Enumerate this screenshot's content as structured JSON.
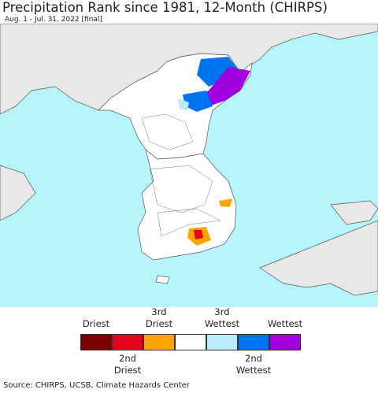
{
  "title": "Precipitation Rank since 1981, 12-Month (CHIRPS)",
  "subtitle": "Aug. 1 - Jul. 31, 2022 [final]",
  "legend": [
    {
      "label": "Driest",
      "color": "#7a0000"
    },
    {
      "label": "2nd Driest",
      "color": "#e8001c"
    },
    {
      "label": "3rd Driest",
      "color": "#ffa500"
    },
    {
      "label": null,
      "color": "#ffffff"
    },
    {
      "label": "3rd Wettest",
      "color": "#b8ecfb"
    },
    {
      "label": "2nd Wettest",
      "color": "#0073f0"
    },
    {
      "label": "Wettest",
      "color": "#a000e0"
    }
  ],
  "source": "Source: CHIRPS, UCSB, Climate Hazards Center"
}
